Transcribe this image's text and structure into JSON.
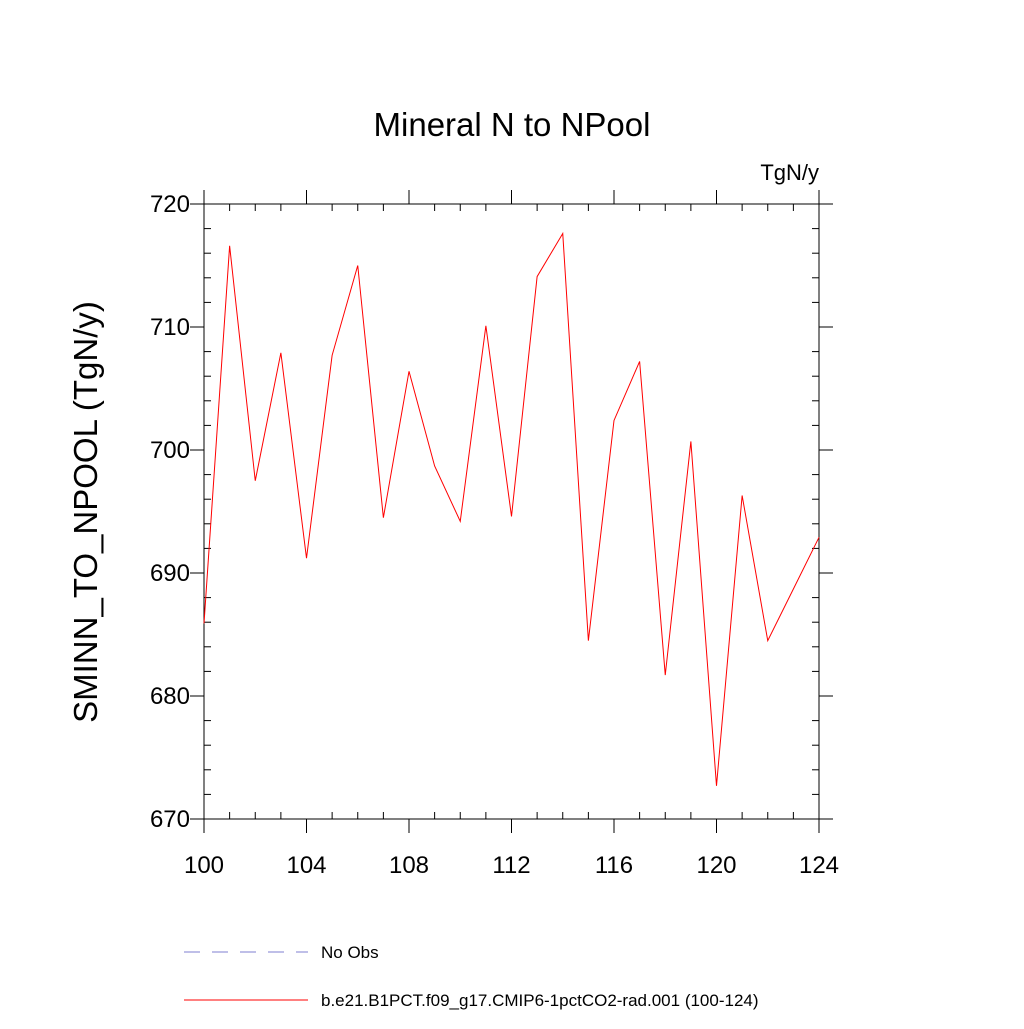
{
  "chart_data": {
    "type": "line",
    "title": "Mineral N to NPool",
    "units": "TgN/y",
    "y_label": "SMINN_TO_NPOOL  (TgN/y)",
    "x": [
      100,
      101,
      102,
      103,
      104,
      105,
      106,
      107,
      108,
      109,
      110,
      111,
      112,
      113,
      114,
      115,
      116,
      117,
      118,
      119,
      120,
      121,
      122,
      123,
      124
    ],
    "series": [
      {
        "name": "No Obs",
        "color": "#7f7fd0",
        "dash": true,
        "values": [
          null,
          null,
          null,
          null,
          null,
          null,
          null,
          null,
          null,
          null,
          null,
          null,
          null,
          null,
          null,
          null,
          null,
          null,
          null,
          null,
          null,
          null,
          null,
          null,
          null
        ]
      },
      {
        "name": "b.e21.B1PCT.f09_g17.CMIP6-1pctCO2-rad.001 (100-124)",
        "color": "#ff0000",
        "dash": false,
        "values": [
          685.9,
          716.6,
          697.5,
          707.9,
          691.2,
          707.7,
          715.0,
          694.5,
          706.4,
          698.7,
          694.2,
          710.1,
          694.6,
          714.1,
          717.6,
          684.5,
          702.4,
          707.2,
          681.7,
          700.7,
          672.7,
          696.3,
          684.5,
          688.7,
          692.9
        ]
      }
    ],
    "xlim": [
      100,
      124
    ],
    "ylim": [
      670,
      720
    ],
    "xticks": [
      100,
      104,
      108,
      112,
      116,
      120,
      124
    ],
    "yticks": [
      670,
      680,
      690,
      700,
      710,
      720
    ],
    "xminorticks": [
      101,
      102,
      103,
      105,
      106,
      107,
      109,
      110,
      111,
      113,
      114,
      115,
      117,
      118,
      119,
      121,
      122,
      123
    ],
    "yminorticks": [
      672,
      674,
      676,
      678,
      682,
      684,
      686,
      688,
      692,
      694,
      696,
      698,
      702,
      704,
      706,
      708,
      712,
      714,
      716,
      718
    ]
  }
}
